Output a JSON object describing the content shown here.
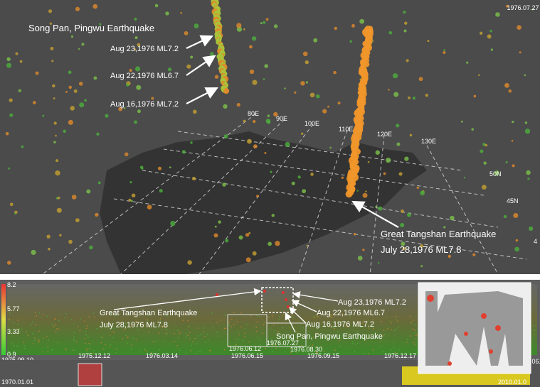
{
  "map_view": {
    "timestamp": "1976.07.27",
    "song_pan_title": "Song Pan, Pingwu Earthquake",
    "song_pan_events": [
      "Aug 23,1976  ML7.2",
      "Aug 22,1976  ML6.7",
      "Aug 16,1976  ML7.2"
    ],
    "longitude_labels": [
      "80E",
      "90E",
      "100E",
      "110E",
      "120E",
      "130E"
    ],
    "latitude_labels": [
      "50N",
      "45N"
    ],
    "tangshan": [
      "Great Tangshan Earthquake",
      "July 28,1976 ML7.8"
    ],
    "edge_label": "4"
  },
  "timeline": {
    "magnitude_labels": [
      "8.2",
      "5.77",
      "3.33",
      "0.9"
    ],
    "date_labels": [
      "1975.09.10",
      "1975.12.12",
      "1976.03.14",
      "1976.06.12",
      "1976.07.27",
      "1976.06.15",
      "1976.08.30",
      "1976.09.15",
      "1976.12.17",
      "1977.06.2"
    ],
    "overview_dates": [
      "1970.01.01",
      "2010.01.0"
    ],
    "song_pan_events": [
      "Aug 23,1976  ML7.2",
      "Aug 22,1976  ML6.7",
      "Aug 16,1976  ML7.2"
    ],
    "tangshan": [
      "Great Tangshan Earthquake",
      "July 28,1976 ML7.8"
    ],
    "song_pan_title": "Song Pan, Pingwu Earthquake"
  }
}
